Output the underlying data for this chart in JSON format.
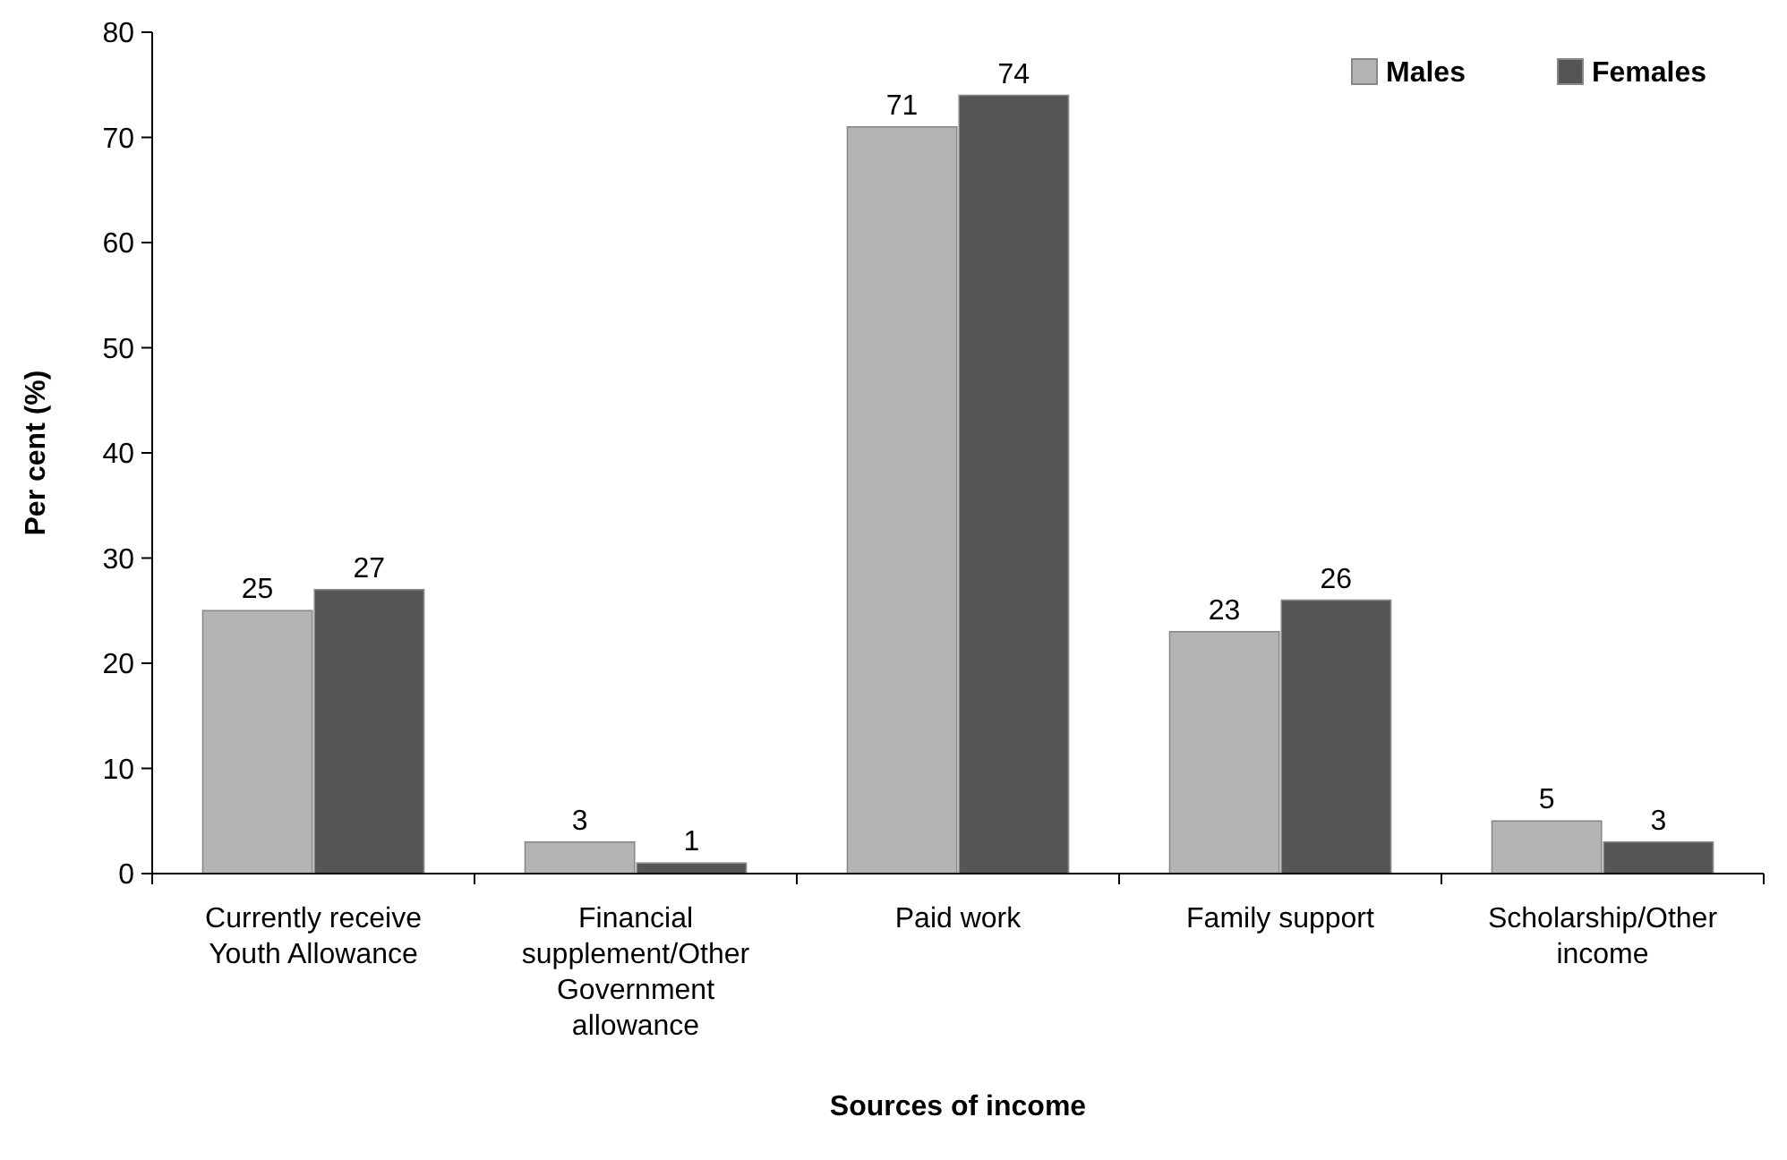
{
  "chart_data": {
    "type": "bar",
    "xlabel": "Sources of income",
    "ylabel": "Per cent (%)",
    "categories": [
      "Currently receive Youth Allowance",
      "Financial supplement/Other Government allowance",
      "Paid work",
      "Family support",
      "Scholarship/Other income"
    ],
    "series": [
      {
        "name": "Males",
        "color": "#b4b4b4",
        "values": [
          25,
          3,
          71,
          23,
          5
        ]
      },
      {
        "name": "Females",
        "color": "#555555",
        "values": [
          27,
          1,
          74,
          26,
          3
        ]
      }
    ],
    "ylim": [
      0,
      80
    ],
    "yticks": [
      0,
      10,
      20,
      30,
      40,
      50,
      60,
      70,
      80
    ],
    "data_labels": true,
    "legend": "top right",
    "grid": false
  }
}
